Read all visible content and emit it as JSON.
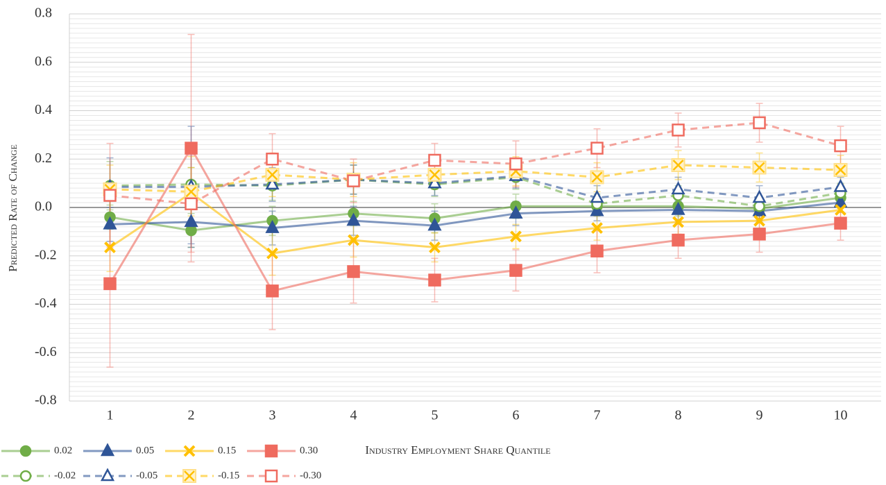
{
  "chart_data": {
    "type": "line",
    "y_label": "Predicted Rate of Change",
    "x_label": "Industry Employment Share Quantile",
    "categories": [
      1,
      2,
      3,
      4,
      5,
      6,
      7,
      8,
      9,
      10
    ],
    "ylim": [
      -0.8,
      0.8
    ],
    "yticks": [
      -0.8,
      -0.6,
      -0.4,
      -0.2,
      {
        "value": 0,
        "label": "0.0"
      },
      0.2,
      0.4,
      0.6,
      0.8
    ],
    "grid": true,
    "legend": "bottom",
    "series": [
      {
        "name": "0.02",
        "color": "#70ad47",
        "marker": "circle",
        "filled": true,
        "dashed": false,
        "values": [
          -0.04,
          -0.095,
          -0.055,
          -0.025,
          -0.045,
          0.005,
          0.005,
          0.005,
          -0.005,
          0.04
        ],
        "errors": [
          0.05,
          0.07,
          0.06,
          0.05,
          0.06,
          0.05,
          0.04,
          0.04,
          0.04,
          0.04
        ]
      },
      {
        "name": "0.05",
        "color": "#2f5597",
        "marker": "triangle",
        "filled": true,
        "dashed": false,
        "values": [
          -0.07,
          -0.06,
          -0.085,
          -0.055,
          -0.075,
          -0.025,
          -0.015,
          -0.01,
          -0.015,
          0.02
        ],
        "errors": [
          0.07,
          0.09,
          0.07,
          0.06,
          0.06,
          0.05,
          0.04,
          0.04,
          0.04,
          0.04
        ]
      },
      {
        "name": "0.15",
        "color": "#ffc000",
        "marker": "x",
        "filled": true,
        "dashed": false,
        "values": [
          -0.165,
          0.06,
          -0.19,
          -0.135,
          -0.165,
          -0.12,
          -0.085,
          -0.06,
          -0.055,
          -0.01
        ],
        "errors": [
          0.1,
          0.15,
          0.09,
          0.07,
          0.06,
          0.05,
          0.05,
          0.05,
          0.05,
          0.05
        ]
      },
      {
        "name": "0.30",
        "color": "#ef6b5f",
        "marker": "square",
        "filled": true,
        "dashed": false,
        "values": [
          -0.315,
          0.245,
          -0.345,
          -0.265,
          -0.3,
          -0.26,
          -0.18,
          -0.135,
          -0.11,
          -0.065
        ],
        "errors": [
          0.345,
          0.47,
          0.16,
          0.13,
          0.09,
          0.085,
          0.09,
          0.075,
          0.075,
          0.07
        ]
      },
      {
        "name": "-0.02",
        "color": "#70ad47",
        "marker": "circle",
        "filled": false,
        "dashed": true,
        "values": [
          0.09,
          0.095,
          0.09,
          0.115,
          0.095,
          0.125,
          0.015,
          0.05,
          0.005,
          0.06
        ],
        "errors": [
          0.1,
          0.07,
          0.06,
          0.06,
          0.05,
          0.05,
          0.04,
          0.04,
          0.04,
          0.04
        ]
      },
      {
        "name": "-0.05",
        "color": "#2f5597",
        "marker": "triangle",
        "filled": false,
        "dashed": true,
        "values": [
          0.085,
          0.085,
          0.095,
          0.115,
          0.1,
          0.13,
          0.04,
          0.075,
          0.04,
          0.085
        ],
        "errors": [
          0.12,
          0.25,
          0.07,
          0.06,
          0.05,
          0.05,
          0.05,
          0.05,
          0.05,
          0.04
        ]
      },
      {
        "name": "-0.15",
        "color": "#ffc000",
        "marker": "xbox",
        "filled": false,
        "dashed": true,
        "values": [
          0.075,
          0.065,
          0.135,
          0.115,
          0.135,
          0.15,
          0.125,
          0.175,
          0.165,
          0.155
        ],
        "errors": [
          0.1,
          0.1,
          0.09,
          0.07,
          0.06,
          0.06,
          0.06,
          0.06,
          0.06,
          0.06
        ]
      },
      {
        "name": "-0.30",
        "color": "#ef6b5f",
        "marker": "square",
        "filled": false,
        "dashed": true,
        "values": [
          0.05,
          0.015,
          0.2,
          0.11,
          0.195,
          0.18,
          0.245,
          0.32,
          0.35,
          0.255
        ],
        "errors": [
          0.215,
          0.2,
          0.105,
          0.09,
          0.07,
          0.095,
          0.08,
          0.07,
          0.08,
          0.08
        ]
      }
    ]
  }
}
